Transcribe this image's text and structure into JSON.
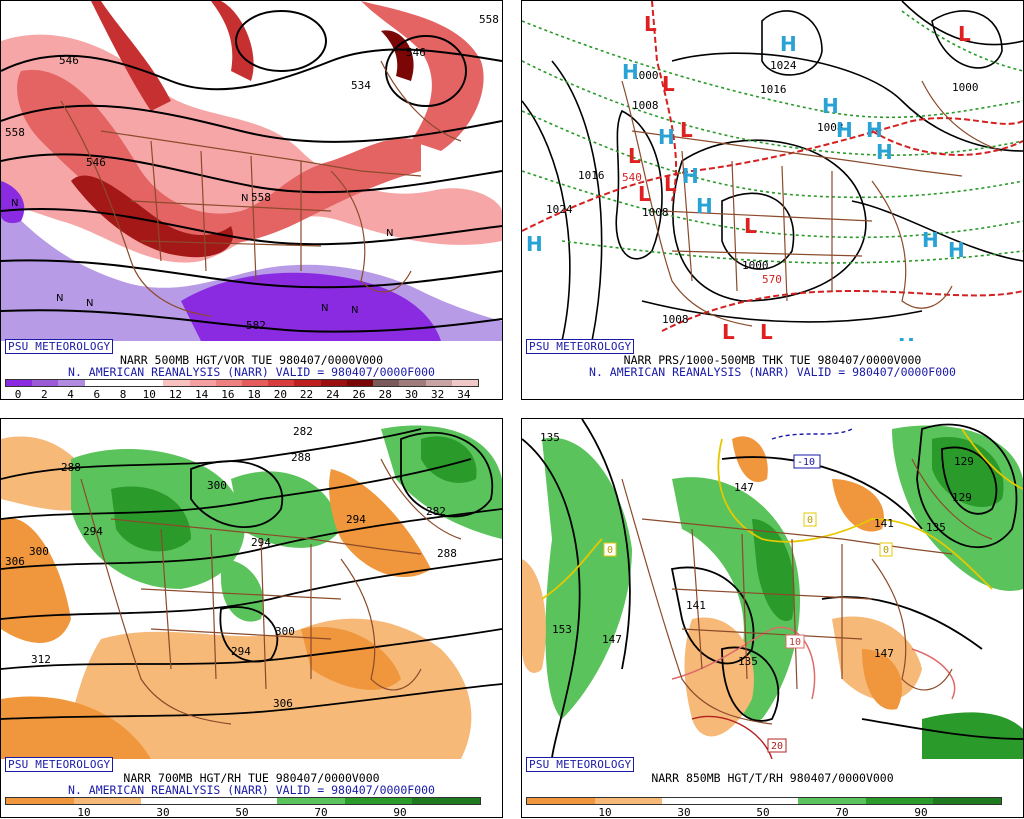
{
  "badge": "PSU METEOROLOGY",
  "panels": [
    {
      "title": "NARR 500MB HGT/VOR TUE 980407/0000V000",
      "subtitle": "N. AMERICAN REANALYSIS (NARR) VALID = 980407/0000F000",
      "colorbar": {
        "labels": [
          "0",
          "2",
          "4",
          "6",
          "8",
          "10",
          "12",
          "14",
          "16",
          "18",
          "20",
          "22",
          "24",
          "26",
          "28",
          "30",
          "32",
          "34"
        ],
        "colors": [
          "#8a2be2",
          "#9b59d6",
          "#b28ae0",
          "#ffffff",
          "#ffffff",
          "#ffffff",
          "#f9c0c0",
          "#f4a0a0",
          "#ee8080",
          "#e65c5c",
          "#d93c3c",
          "#c01f1f",
          "#9a0f0f",
          "#7a0606",
          "#7a5a5a",
          "#a07d7d",
          "#c8a3a3",
          "#f0c8c8"
        ]
      },
      "contour_labels": [
        "558",
        "558",
        "546",
        "546",
        "534",
        "558",
        "546",
        "582",
        "558"
      ]
    },
    {
      "title": "NARR PRS/1000-500MB THK TUE 980407/0000V000",
      "subtitle": "N. AMERICAN REANALYSIS (NARR) VALID = 980407/0000F000",
      "contour_labels": [
        "1024",
        "1016",
        "1008",
        "1000",
        "1008",
        "1016",
        "1024",
        "1000",
        "1008",
        "1000",
        "570",
        "540"
      ],
      "high_label": "H",
      "low_label": "L"
    },
    {
      "title": "NARR 700MB HGT/RH TUE 980407/0000V000",
      "subtitle": "N. AMERICAN REANALYSIS (NARR) VALID = 980407/0000F000",
      "colorbar": {
        "labels": [
          "10",
          "30",
          "50",
          "70",
          "90"
        ],
        "colors": [
          "#f0963c",
          "#f6b978",
          "#ffffff",
          "#ffffff",
          "#5bc35b",
          "#2a9a2a",
          "#1f7a1f"
        ]
      },
      "contour_labels": [
        "282",
        "288",
        "288",
        "300",
        "294",
        "294",
        "300",
        "294",
        "282",
        "288",
        "306",
        "300",
        "312",
        "294",
        "300",
        "306",
        "312"
      ]
    },
    {
      "title": "NARR 850MB HGT/T/RH 980407/0000V000",
      "subtitle": "",
      "colorbar": {
        "labels": [
          "10",
          "30",
          "50",
          "70",
          "90"
        ],
        "colors": [
          "#f0963c",
          "#f6b978",
          "#ffffff",
          "#ffffff",
          "#5bc35b",
          "#2a9a2a",
          "#1f7a1f"
        ]
      },
      "contour_labels": [
        "135",
        "147",
        "-10",
        "129",
        "129",
        "135",
        "141",
        "0",
        "0",
        "0",
        "141",
        "153",
        "147",
        "135",
        "147",
        "10",
        "20"
      ]
    }
  ]
}
